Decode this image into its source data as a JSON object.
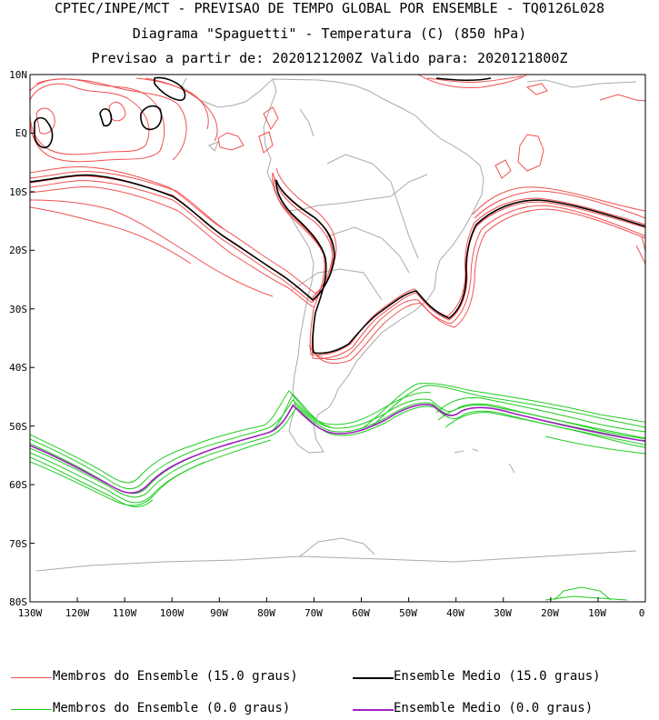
{
  "header": {
    "line1": "CPTEC/INPE/MCT - PREVISAO DE TEMPO GLOBAL POR ENSEMBLE - TQ0126L028",
    "line2": "Diagrama \"Spaguetti\" - Temperatura (C) (850 hPa)",
    "line3": "Previsao a partir de: 2020121200Z  Valido para: 2020121800Z"
  },
  "axes": {
    "lat_labels": [
      "10N",
      "EQ",
      "10S",
      "20S",
      "30S",
      "40S",
      "50S",
      "60S",
      "70S",
      "80S"
    ],
    "lon_labels": [
      "130W",
      "120W",
      "110W",
      "100W",
      "90W",
      "80W",
      "70W",
      "60W",
      "50W",
      "40W",
      "30W",
      "20W",
      "10W",
      "0"
    ]
  },
  "colors": {
    "members_15": "#f05050",
    "mean_15": "#000000",
    "members_0": "#22cc22",
    "mean_0": "#a020c0",
    "coast": "#aaaaaa"
  },
  "legend": {
    "members_15": "Membros do Ensemble (15.0 graus)",
    "mean_15": "Ensemble Medio (15.0 graus)",
    "members_0": "Membros do Ensemble (0.0 graus)",
    "mean_0": "Ensemble Medio (0.0 graus)"
  }
}
